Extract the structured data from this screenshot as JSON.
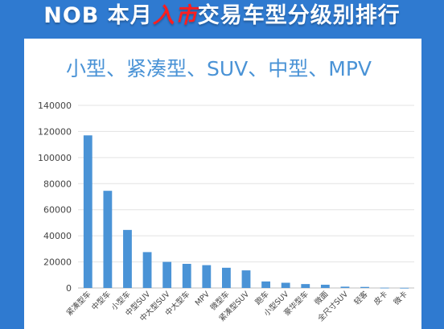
{
  "header": {
    "title_prefix": "NOB 本月",
    "title_highlight": "入市",
    "title_suffix": "交易车型分级别排行"
  },
  "colors": {
    "background": "#2f7ad0",
    "bar": "#4a93d6",
    "title_highlight": "#ff1e1e",
    "subtitle": "#4a93d6"
  },
  "chart_data": {
    "type": "bar",
    "title": "小型、紧凑型、SUV、中型、MPV",
    "xlabel": "",
    "ylabel": "",
    "categories": [
      "紧凑型车",
      "中型车",
      "小型车",
      "中型SUV",
      "中大型SUV",
      "中大型车",
      "MPV",
      "微型车",
      "紧凑型SUV",
      "跑车",
      "小型SUV",
      "豪华型车",
      "微面",
      "全尺寸SUV",
      "轻客",
      "皮卡",
      "微卡"
    ],
    "values": [
      117000,
      74500,
      44500,
      27500,
      20000,
      18500,
      17500,
      15500,
      13500,
      5000,
      4000,
      3000,
      2500,
      1000,
      800,
      200,
      100
    ],
    "ylim": [
      0,
      140000
    ],
    "yticks": [
      0,
      20000,
      40000,
      60000,
      80000,
      100000,
      120000,
      140000
    ],
    "grid": true,
    "legend": "none"
  }
}
